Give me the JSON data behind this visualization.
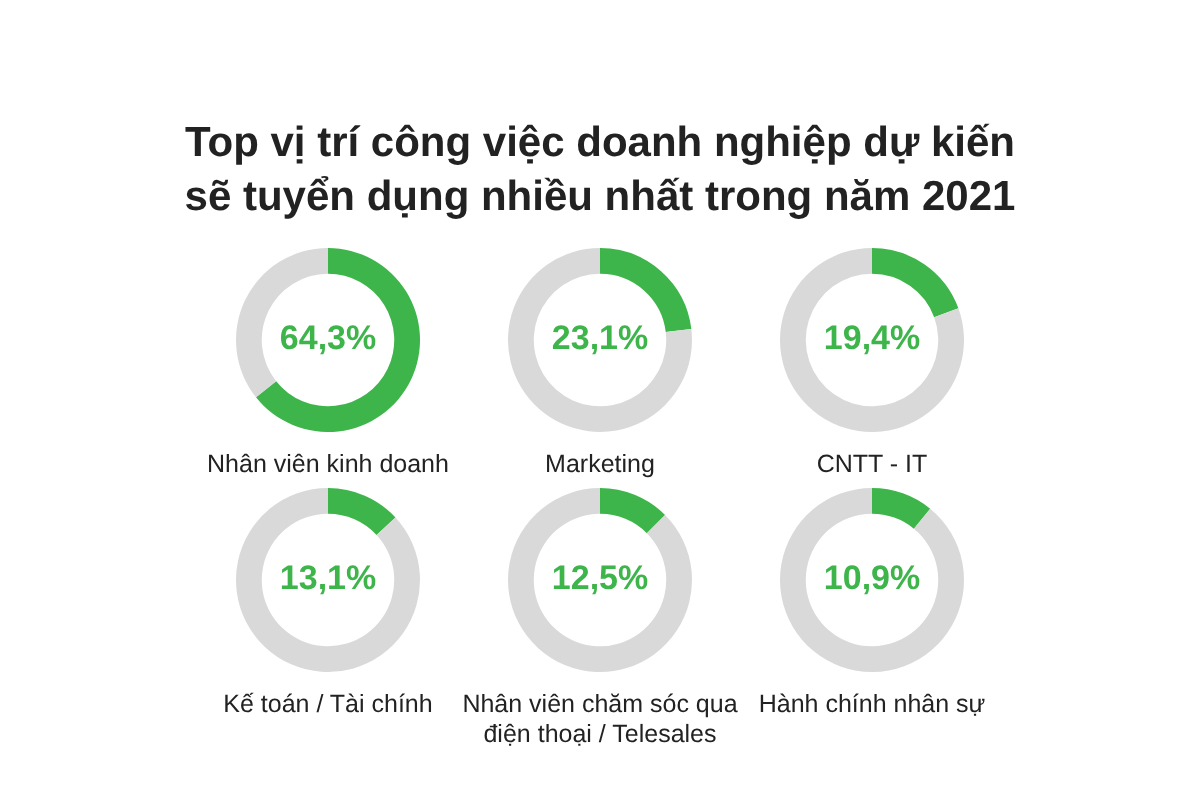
{
  "chart_data": [
    {
      "type": "other",
      "title": "Top vị trí công việc doanh nghiệp dự kiến sẽ tuyển dụng nhiều nhất trong năm 2021"
    },
    {
      "type": "donut",
      "xlabel": "Nhân viên kinh doanh",
      "categories": [
        null,
        null
      ],
      "values": [
        64.3,
        35.7
      ],
      "colors": [
        "#3db54a",
        "#d9d9d9"
      ],
      "value_labels": [
        "64,3%",
        null
      ],
      "legend": false
    },
    {
      "type": "donut",
      "xlabel": "Marketing",
      "categories": [
        null,
        null
      ],
      "values": [
        23.1,
        76.9
      ],
      "colors": [
        "#3db54a",
        "#d9d9d9"
      ],
      "value_labels": [
        "23,1%",
        null
      ],
      "legend": false
    },
    {
      "type": "donut",
      "xlabel": "CNTT - IT",
      "categories": [
        null,
        null
      ],
      "values": [
        19.4,
        80.6
      ],
      "colors": [
        "#3db54a",
        "#d9d9d9"
      ],
      "value_labels": [
        "19,4%",
        null
      ],
      "legend": false
    },
    {
      "type": "donut",
      "xlabel": "Kế toán / Tài chính",
      "categories": [
        null,
        null
      ],
      "values": [
        13.1,
        86.9
      ],
      "colors": [
        "#3db54a",
        "#d9d9d9"
      ],
      "value_labels": [
        "13,1%",
        null
      ],
      "legend": false
    },
    {
      "type": "donut",
      "xlabel": "Nhân viên chăm sóc qua điện thoại / Telesales",
      "categories": [
        null,
        null
      ],
      "values": [
        12.5,
        87.5
      ],
      "colors": [
        "#3db54a",
        "#d9d9d9"
      ],
      "value_labels": [
        "12,5%",
        null
      ],
      "legend": false
    },
    {
      "type": "donut",
      "xlabel": "Hành chính nhân sự",
      "categories": [
        null,
        null
      ],
      "values": [
        10.9,
        89.1
      ],
      "colors": [
        "#3db54a",
        "#d9d9d9"
      ],
      "value_labels": [
        "10,9%",
        null
      ],
      "legend": false
    }
  ]
}
